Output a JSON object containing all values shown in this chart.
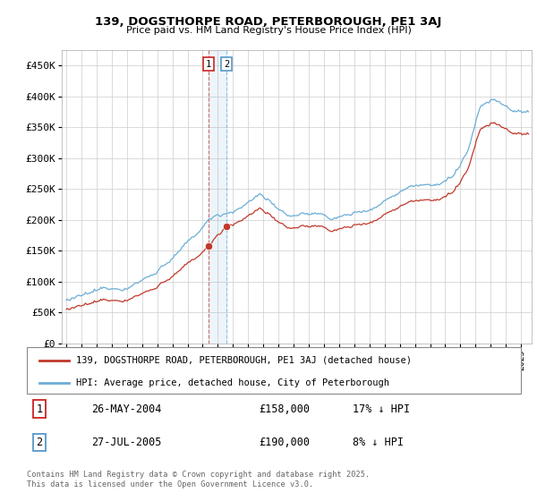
{
  "title_line1": "139, DOGSTHORPE ROAD, PETERBOROUGH, PE1 3AJ",
  "title_line2": "Price paid vs. HM Land Registry's House Price Index (HPI)",
  "ylim": [
    0,
    475000
  ],
  "yticks": [
    0,
    50000,
    100000,
    150000,
    200000,
    250000,
    300000,
    350000,
    400000,
    450000
  ],
  "ytick_labels": [
    "£0",
    "£50K",
    "£100K",
    "£150K",
    "£200K",
    "£250K",
    "£300K",
    "£350K",
    "£400K",
    "£450K"
  ],
  "hpi_color": "#6baed6",
  "price_color": "#c0392b",
  "sale1_year_float": 2004.397,
  "sale1_price": 158000,
  "sale2_year_float": 2005.567,
  "sale2_price": 190000,
  "transaction1_date": "26-MAY-2004",
  "transaction1_price_str": "£158,000",
  "transaction1_hpi_str": "17% ↓ HPI",
  "transaction2_date": "27-JUL-2005",
  "transaction2_price_str": "£190,000",
  "transaction2_hpi_str": "8% ↓ HPI",
  "legend_label1": "139, DOGSTHORPE ROAD, PETERBOROUGH, PE1 3AJ (detached house)",
  "legend_label2": "HPI: Average price, detached house, City of Peterborough",
  "footer": "Contains HM Land Registry data © Crown copyright and database right 2025.\nThis data is licensed under the Open Government Licence v3.0.",
  "background_color": "#ffffff",
  "grid_color": "#cccccc",
  "xlim_left": 1994.7,
  "xlim_right": 2025.7
}
